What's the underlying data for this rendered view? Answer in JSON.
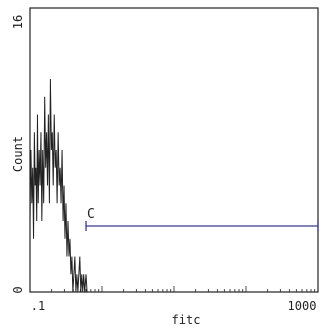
{
  "chart_data": {
    "type": "histogram",
    "xlabel": "fitc",
    "ylabel": "Count",
    "xscale": "log",
    "xlim": [
      0.1,
      1000
    ],
    "ylim": [
      0,
      16
    ],
    "x_tick_labels": [
      ".1",
      "1000"
    ],
    "y_tick_labels": [
      "0",
      "16"
    ],
    "grid": false,
    "gate": {
      "label": "C",
      "x_start": 0.6,
      "x_end": 1000,
      "color": "#3a3a8c"
    },
    "series": [
      {
        "line_color": "#222222",
        "x": [
          0.1,
          0.103,
          0.106,
          0.109,
          0.112,
          0.115,
          0.118,
          0.121,
          0.124,
          0.127,
          0.13,
          0.134,
          0.138,
          0.142,
          0.146,
          0.15,
          0.155,
          0.16,
          0.165,
          0.17,
          0.175,
          0.18,
          0.186,
          0.192,
          0.198,
          0.204,
          0.21,
          0.217,
          0.224,
          0.231,
          0.238,
          0.246,
          0.254,
          0.262,
          0.27,
          0.279,
          0.288,
          0.297,
          0.306,
          0.316,
          0.326,
          0.337,
          0.348,
          0.359,
          0.37,
          0.382,
          0.394,
          0.407,
          0.42,
          0.434,
          0.448,
          0.462,
          0.477,
          0.492,
          0.508,
          0.524,
          0.54,
          0.557,
          0.575,
          0.6,
          0.62,
          0.64,
          0.66
        ],
        "counts": [
          4,
          8,
          5,
          7,
          3,
          9,
          6,
          7,
          4,
          10,
          5,
          8,
          6,
          9,
          4,
          8,
          5,
          11,
          7,
          9,
          6,
          10,
          5,
          12,
          8,
          9,
          6,
          10,
          7,
          8,
          5,
          9,
          6,
          7,
          5,
          8,
          4,
          6,
          3,
          5,
          2,
          4,
          2,
          3,
          1,
          2,
          0,
          1,
          2,
          0,
          1,
          0,
          1,
          2,
          0,
          1,
          0,
          1,
          0,
          1,
          0,
          0,
          0
        ]
      }
    ]
  }
}
